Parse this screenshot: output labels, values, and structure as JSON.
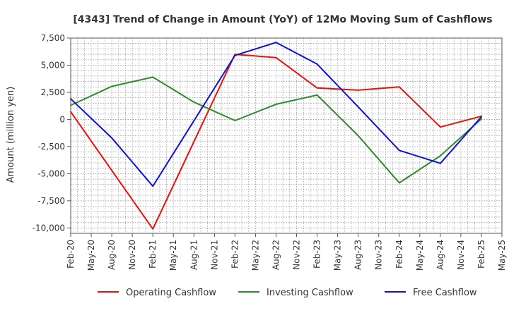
{
  "chart_data": {
    "type": "line",
    "title": "[4343]  Trend of Change in Amount (YoY) of 12Mo Moving Sum of Cashflows",
    "xlabel": "",
    "ylabel": "Amount (million yen)",
    "ylim": [
      -10500,
      7500
    ],
    "yticks": [
      7500,
      5000,
      2500,
      0,
      -2500,
      -5000,
      -7500,
      -10000
    ],
    "ytick_labels": [
      "7,500",
      "5,000",
      "2,500",
      "0",
      "-2,500",
      "-5,000",
      "-7,500",
      "-10,000"
    ],
    "categories": [
      "Feb-20",
      "May-20",
      "Aug-20",
      "Nov-20",
      "Feb-21",
      "May-21",
      "Aug-21",
      "Nov-21",
      "Feb-22",
      "May-22",
      "Aug-22",
      "Nov-22",
      "Feb-23",
      "May-23",
      "Aug-23",
      "Nov-23",
      "Feb-24",
      "May-24",
      "Aug-24",
      "Nov-24",
      "Feb-25",
      "May-25"
    ],
    "grid": true,
    "legend_position": "bottom",
    "series": [
      {
        "name": "Operating Cashflow",
        "color": "#e8120c",
        "points": [
          [
            0,
            700
          ],
          [
            4,
            -10100
          ],
          [
            8,
            6000
          ],
          [
            10,
            5700
          ],
          [
            12,
            2900
          ],
          [
            14,
            2700
          ],
          [
            16,
            3000
          ],
          [
            18,
            -700
          ],
          [
            20,
            300
          ]
        ]
      },
      {
        "name": "Investing Cashflow",
        "color": "#2a8c2a",
        "points": [
          [
            0,
            1300
          ],
          [
            2,
            3050
          ],
          [
            4,
            3900
          ],
          [
            6,
            1600
          ],
          [
            8,
            -100
          ],
          [
            10,
            1400
          ],
          [
            12,
            2250
          ],
          [
            14,
            -1500
          ],
          [
            16,
            -5850
          ],
          [
            18,
            -3350
          ],
          [
            20,
            50
          ]
        ]
      },
      {
        "name": "Free Cashflow",
        "color": "#1111d4",
        "points": [
          [
            0,
            1900
          ],
          [
            2,
            -1700
          ],
          [
            4,
            -6150
          ],
          [
            8,
            5900
          ],
          [
            10,
            7100
          ],
          [
            12,
            5100
          ],
          [
            14,
            1150
          ],
          [
            16,
            -2850
          ],
          [
            18,
            -4050
          ],
          [
            20,
            250
          ]
        ]
      }
    ]
  }
}
